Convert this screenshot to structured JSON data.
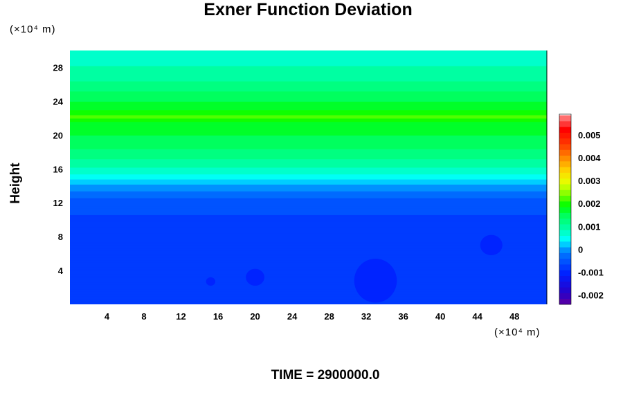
{
  "chart_data": {
    "type": "heatmap",
    "title": "Exner Function Deviation",
    "ylabel": "Height",
    "xlabel": "",
    "x_unit": "(×10⁴ m)",
    "y_unit": "(×10⁴ m)",
    "footer": "TIME = 2900000.0",
    "xlim": [
      0,
      51.5
    ],
    "ylim": [
      0,
      30
    ],
    "x_ticks": [
      4,
      8,
      12,
      16,
      20,
      24,
      28,
      32,
      36,
      40,
      44,
      48
    ],
    "y_ticks": [
      4,
      8,
      12,
      16,
      20,
      24,
      28
    ],
    "colorbar": {
      "min": -0.0024,
      "max": 0.0059,
      "step": 0.00025,
      "tick_labels": [
        "-0.002",
        "-0.001",
        "0",
        "0.001",
        "0.002",
        "0.003",
        "0.004",
        "0.005"
      ],
      "tick_values": [
        -0.002,
        -0.001,
        0,
        0.001,
        0.002,
        0.003,
        0.004,
        0.005
      ]
    },
    "height_profile": [
      {
        "z": 0,
        "value": -0.00075
      },
      {
        "z": 10.5,
        "value": -0.00075
      },
      {
        "z": 10.8,
        "value": -0.0005
      },
      {
        "z": 12.5,
        "value": -0.0004
      },
      {
        "z": 13.5,
        "value": -0.0001
      },
      {
        "z": 14.5,
        "value": 0.0002
      },
      {
        "z": 16,
        "value": 0.0008
      },
      {
        "z": 18,
        "value": 0.0013
      },
      {
        "z": 20,
        "value": 0.0016
      },
      {
        "z": 21.5,
        "value": 0.0018
      },
      {
        "z": 22.3,
        "value": 0.0022
      },
      {
        "z": 23,
        "value": 0.0018
      },
      {
        "z": 24.5,
        "value": 0.0015
      },
      {
        "z": 26.5,
        "value": 0.0011
      },
      {
        "z": 28.5,
        "value": 0.0008
      },
      {
        "z": 30,
        "value": 0.0007
      }
    ],
    "blobs": [
      {
        "x": 15.2,
        "z": 2.7,
        "rx": 0.5,
        "rz": 0.5,
        "value": -0.001
      },
      {
        "x": 20.0,
        "z": 3.2,
        "rx": 1.0,
        "rz": 1.0,
        "value": -0.001
      },
      {
        "x": 33.0,
        "z": 2.8,
        "rx": 2.3,
        "rz": 2.6,
        "value": -0.001
      },
      {
        "x": 45.5,
        "z": 7.0,
        "rx": 1.2,
        "rz": 1.2,
        "value": -0.001
      }
    ]
  }
}
